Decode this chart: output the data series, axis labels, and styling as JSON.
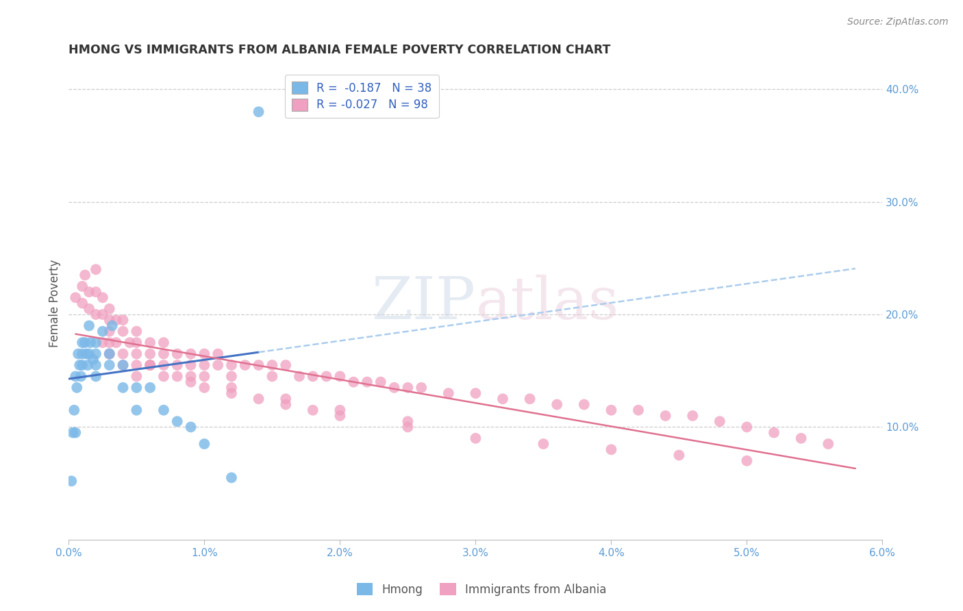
{
  "title": "HMONG VS IMMIGRANTS FROM ALBANIA FEMALE POVERTY CORRELATION CHART",
  "source": "Source: ZipAtlas.com",
  "ylabel": "Female Poverty",
  "hmong_color": "#7ab8e8",
  "albania_color": "#f0a0c0",
  "hmong_line_color": "#4472c4",
  "albania_line_color": "#e07090",
  "hmong_dash_color": "#aaccee",
  "xlim": [
    0.0,
    0.06
  ],
  "ylim": [
    0.0,
    0.42
  ],
  "xticks": [
    0.0,
    0.01,
    0.02,
    0.03,
    0.04,
    0.05,
    0.06
  ],
  "xticklabels": [
    "0.0%",
    "1.0%",
    "2.0%",
    "3.0%",
    "4.0%",
    "5.0%",
    "6.0%"
  ],
  "yticks_right": [
    0.1,
    0.2,
    0.3,
    0.4
  ],
  "yticklabels_right": [
    "10.0%",
    "20.0%",
    "30.0%",
    "40.0%"
  ],
  "hmong_x": [
    0.0002,
    0.0003,
    0.0004,
    0.0005,
    0.0005,
    0.0006,
    0.0007,
    0.0008,
    0.0009,
    0.001,
    0.001,
    0.001,
    0.0012,
    0.0013,
    0.0014,
    0.0015,
    0.0015,
    0.0016,
    0.0018,
    0.002,
    0.002,
    0.002,
    0.002,
    0.0025,
    0.003,
    0.003,
    0.0032,
    0.004,
    0.004,
    0.005,
    0.005,
    0.006,
    0.007,
    0.008,
    0.009,
    0.01,
    0.012,
    0.014
  ],
  "hmong_y": [
    0.052,
    0.095,
    0.115,
    0.145,
    0.095,
    0.135,
    0.165,
    0.155,
    0.145,
    0.175,
    0.165,
    0.155,
    0.175,
    0.165,
    0.155,
    0.19,
    0.165,
    0.175,
    0.16,
    0.175,
    0.165,
    0.155,
    0.145,
    0.185,
    0.165,
    0.155,
    0.19,
    0.155,
    0.135,
    0.135,
    0.115,
    0.135,
    0.115,
    0.105,
    0.1,
    0.085,
    0.055,
    0.38
  ],
  "albania_x": [
    0.0005,
    0.001,
    0.001,
    0.0012,
    0.0015,
    0.0015,
    0.002,
    0.002,
    0.002,
    0.0025,
    0.0025,
    0.003,
    0.003,
    0.003,
    0.003,
    0.0035,
    0.0035,
    0.004,
    0.004,
    0.004,
    0.0045,
    0.005,
    0.005,
    0.005,
    0.005,
    0.006,
    0.006,
    0.006,
    0.007,
    0.007,
    0.007,
    0.008,
    0.008,
    0.009,
    0.009,
    0.01,
    0.01,
    0.01,
    0.011,
    0.011,
    0.012,
    0.012,
    0.013,
    0.014,
    0.015,
    0.015,
    0.016,
    0.017,
    0.018,
    0.019,
    0.02,
    0.021,
    0.022,
    0.023,
    0.024,
    0.025,
    0.026,
    0.028,
    0.03,
    0.032,
    0.034,
    0.036,
    0.038,
    0.04,
    0.042,
    0.044,
    0.046,
    0.048,
    0.05,
    0.052,
    0.054,
    0.056,
    0.0025,
    0.003,
    0.004,
    0.005,
    0.006,
    0.007,
    0.008,
    0.009,
    0.01,
    0.012,
    0.014,
    0.016,
    0.018,
    0.02,
    0.025,
    0.03,
    0.035,
    0.04,
    0.045,
    0.05,
    0.003,
    0.006,
    0.009,
    0.012,
    0.016,
    0.02,
    0.025
  ],
  "albania_y": [
    0.215,
    0.225,
    0.21,
    0.235,
    0.22,
    0.205,
    0.24,
    0.22,
    0.2,
    0.215,
    0.2,
    0.205,
    0.195,
    0.185,
    0.175,
    0.195,
    0.175,
    0.195,
    0.185,
    0.165,
    0.175,
    0.185,
    0.175,
    0.165,
    0.155,
    0.175,
    0.165,
    0.155,
    0.175,
    0.165,
    0.155,
    0.165,
    0.155,
    0.165,
    0.155,
    0.165,
    0.155,
    0.145,
    0.165,
    0.155,
    0.155,
    0.145,
    0.155,
    0.155,
    0.155,
    0.145,
    0.155,
    0.145,
    0.145,
    0.145,
    0.145,
    0.14,
    0.14,
    0.14,
    0.135,
    0.135,
    0.135,
    0.13,
    0.13,
    0.125,
    0.125,
    0.12,
    0.12,
    0.115,
    0.115,
    0.11,
    0.11,
    0.105,
    0.1,
    0.095,
    0.09,
    0.085,
    0.175,
    0.165,
    0.155,
    0.145,
    0.155,
    0.145,
    0.145,
    0.14,
    0.135,
    0.13,
    0.125,
    0.12,
    0.115,
    0.11,
    0.1,
    0.09,
    0.085,
    0.08,
    0.075,
    0.07,
    0.165,
    0.155,
    0.145,
    0.135,
    0.125,
    0.115,
    0.105
  ]
}
